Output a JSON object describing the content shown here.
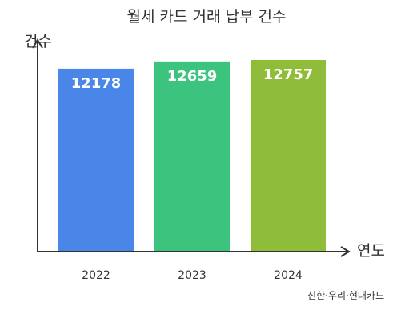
{
  "chart_data": {
    "type": "bar",
    "title": "월세 카드 거래 납부 건수",
    "ylabel": "건수",
    "xlabel": "연도",
    "categories": [
      "2022",
      "2023",
      "2024"
    ],
    "values": [
      12178,
      12659,
      12757
    ],
    "bar_colors": [
      "#4A86E8",
      "#3CC47F",
      "#8FBC39"
    ],
    "source_note": "신한·우리·현대카드",
    "grid": false,
    "legend": "none"
  }
}
